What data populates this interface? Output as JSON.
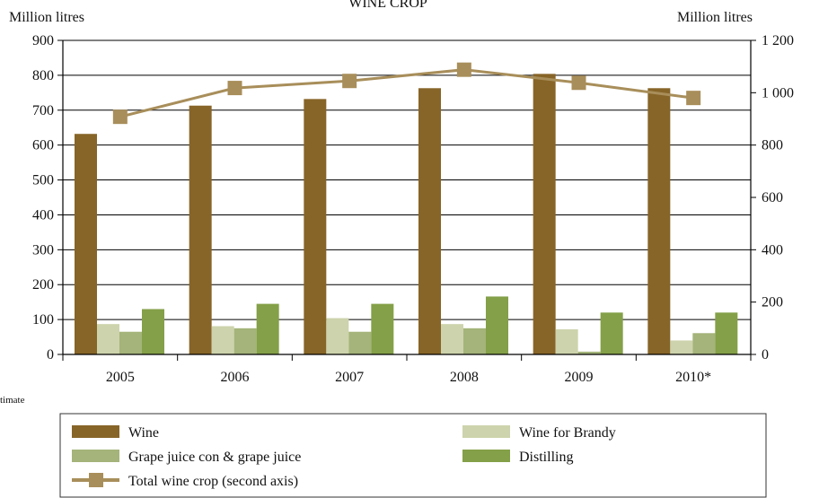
{
  "chart_data": {
    "type": "bar",
    "title": "WINE CROP",
    "ylabel_left": "Million litres",
    "ylabel_right": "Million litres",
    "footnote": "timate",
    "categories": [
      "2005",
      "2006",
      "2007",
      "2008",
      "2009",
      "2010*"
    ],
    "ylim_left": [
      0,
      900
    ],
    "yticks_left": [
      "0",
      "100",
      "200",
      "300",
      "400",
      "500",
      "600",
      "700",
      "800",
      "900"
    ],
    "ylim_right": [
      0,
      1200
    ],
    "yticks_right": [
      "0",
      "200",
      "400",
      "600",
      "800",
      "1 000",
      "1 200"
    ],
    "grid": true,
    "legend_position": "bottom",
    "series": [
      {
        "name": "Wine",
        "kind": "bar",
        "axis": "left",
        "color": "#876528",
        "values": [
          632,
          713,
          732,
          763,
          804,
          763
        ]
      },
      {
        "name": "Wine for Brandy",
        "kind": "bar",
        "axis": "left",
        "color": "#cdd3ac",
        "values": [
          87,
          81,
          104,
          87,
          72,
          40
        ]
      },
      {
        "name": "Grape juice con & grape juice",
        "kind": "bar",
        "axis": "left",
        "color": "#a4b47a",
        "values": [
          65,
          75,
          65,
          75,
          8,
          61
        ]
      },
      {
        "name": "Distilling",
        "kind": "bar",
        "axis": "left",
        "color": "#84a048",
        "values": [
          130,
          145,
          145,
          166,
          120,
          120
        ]
      },
      {
        "name": "Total wine crop (second axis)",
        "kind": "line",
        "axis": "right",
        "color": "#a88e5a",
        "values": [
          908,
          1018,
          1045,
          1088,
          1038,
          980
        ]
      }
    ]
  }
}
